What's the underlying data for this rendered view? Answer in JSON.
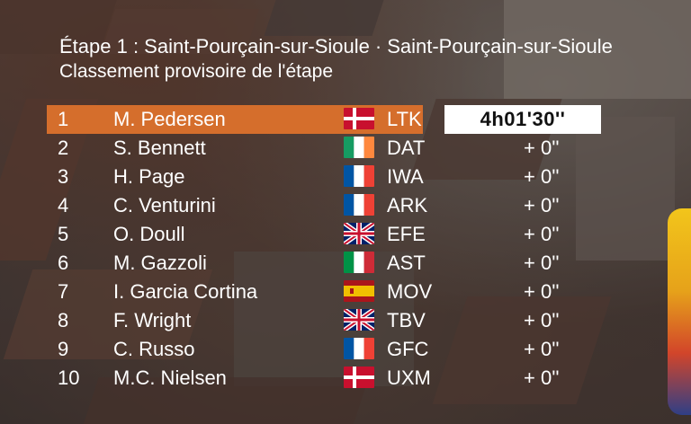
{
  "header": {
    "title_stage": "Étape 1 : Saint-Pourçain-sur-Sioule",
    "title_sep": "·",
    "title_finish": "Saint-Pourçain-sur-Sioule",
    "subtitle": "Classement provisoire de l'étape"
  },
  "rows": [
    {
      "pos": "1",
      "name": "M. Pedersen",
      "flag": "denmark-flag-icon",
      "team": "LTK",
      "time": "4h01'30''"
    },
    {
      "pos": "2",
      "name": "S. Bennett",
      "flag": "ireland-flag-icon",
      "team": "DAT",
      "time": "+  0''"
    },
    {
      "pos": "3",
      "name": "H. Page",
      "flag": "france-flag-icon",
      "team": "IWA",
      "time": "+  0''"
    },
    {
      "pos": "4",
      "name": "C. Venturini",
      "flag": "france-flag-icon",
      "team": "ARK",
      "time": "+  0''"
    },
    {
      "pos": "5",
      "name": "O. Doull",
      "flag": "uk-flag-icon",
      "team": "EFE",
      "time": "+  0''"
    },
    {
      "pos": "6",
      "name": "M. Gazzoli",
      "flag": "italy-flag-icon",
      "team": "AST",
      "time": "+  0''"
    },
    {
      "pos": "7",
      "name": "I. Garcia Cortina",
      "flag": "spain-flag-icon",
      "team": "MOV",
      "time": "+  0''"
    },
    {
      "pos": "8",
      "name": "F. Wright",
      "flag": "uk-flag-icon",
      "team": "TBV",
      "time": "+  0''"
    },
    {
      "pos": "9",
      "name": "C. Russo",
      "flag": "france-flag-icon",
      "team": "GFC",
      "time": "+  0''"
    },
    {
      "pos": "10",
      "name": "M.C. Nielsen",
      "flag": "denmark-flag-icon",
      "team": "UXM",
      "time": "+  0''"
    }
  ],
  "colors": {
    "leader_band": "#d56e2c",
    "leader_time_bg": "#ffffff",
    "text": "#ffffff"
  }
}
